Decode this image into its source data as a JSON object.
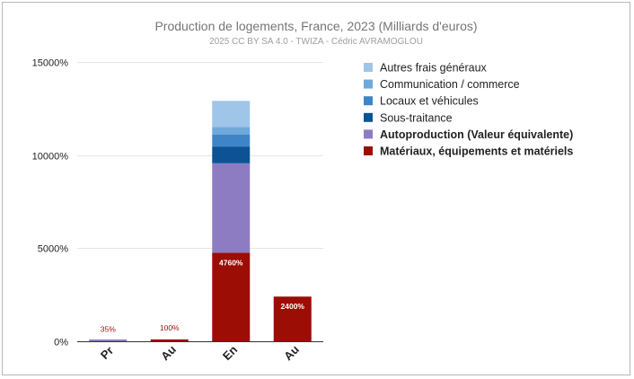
{
  "chart_data": {
    "type": "bar",
    "stacked": true,
    "title": "Production de logements, France, 2023 (Milliards d'euros)",
    "subtitle": "2025 CC BY SA 4.0 - TWIZA - Cédric AVRAMOGLOU",
    "xlabel": "",
    "ylabel": "",
    "categories": [
      "Pr",
      "Au",
      "En",
      "Au"
    ],
    "ylim": [
      0,
      15000
    ],
    "yticks": [
      {
        "value": 0,
        "label": "0%"
      },
      {
        "value": 5000,
        "label": "5000%"
      },
      {
        "value": 10000,
        "label": "10000%"
      },
      {
        "value": 15000,
        "label": "15000%"
      }
    ],
    "grid": true,
    "legend_position": "right",
    "series": [
      {
        "name": "Matériaux, équipements et matériels",
        "color": "#9c0d06",
        "bold": true,
        "values": [
          0,
          100,
          4760,
          2400
        ],
        "labels": [
          "",
          "100%",
          "4760%",
          "2400%"
        ]
      },
      {
        "name": "Autoproduction (Valeur équivalente)",
        "color": "#8e7cc3",
        "bold": true,
        "values": [
          35,
          0,
          4800,
          0
        ],
        "labels": [
          "35%",
          "",
          "",
          ""
        ]
      },
      {
        "name": "Sous-traitance",
        "color": "#0b5394",
        "bold": false,
        "values": [
          0,
          0,
          900,
          0
        ],
        "labels": [
          "",
          "",
          "",
          ""
        ]
      },
      {
        "name": "Locaux et véhicules",
        "color": "#3d85c6",
        "bold": false,
        "values": [
          0,
          0,
          650,
          0
        ],
        "labels": [
          "",
          "",
          "",
          ""
        ]
      },
      {
        "name": "Communication / commerce",
        "color": "#6fa8dc",
        "bold": false,
        "values": [
          0,
          0,
          400,
          0
        ],
        "labels": [
          "",
          "",
          "",
          ""
        ]
      },
      {
        "name": "Autres frais généraux",
        "color": "#9fc5e8",
        "bold": false,
        "values": [
          0,
          0,
          1400,
          0
        ],
        "labels": [
          "",
          "",
          "",
          ""
        ]
      }
    ],
    "legend_order": [
      5,
      4,
      3,
      2,
      1,
      0
    ]
  }
}
